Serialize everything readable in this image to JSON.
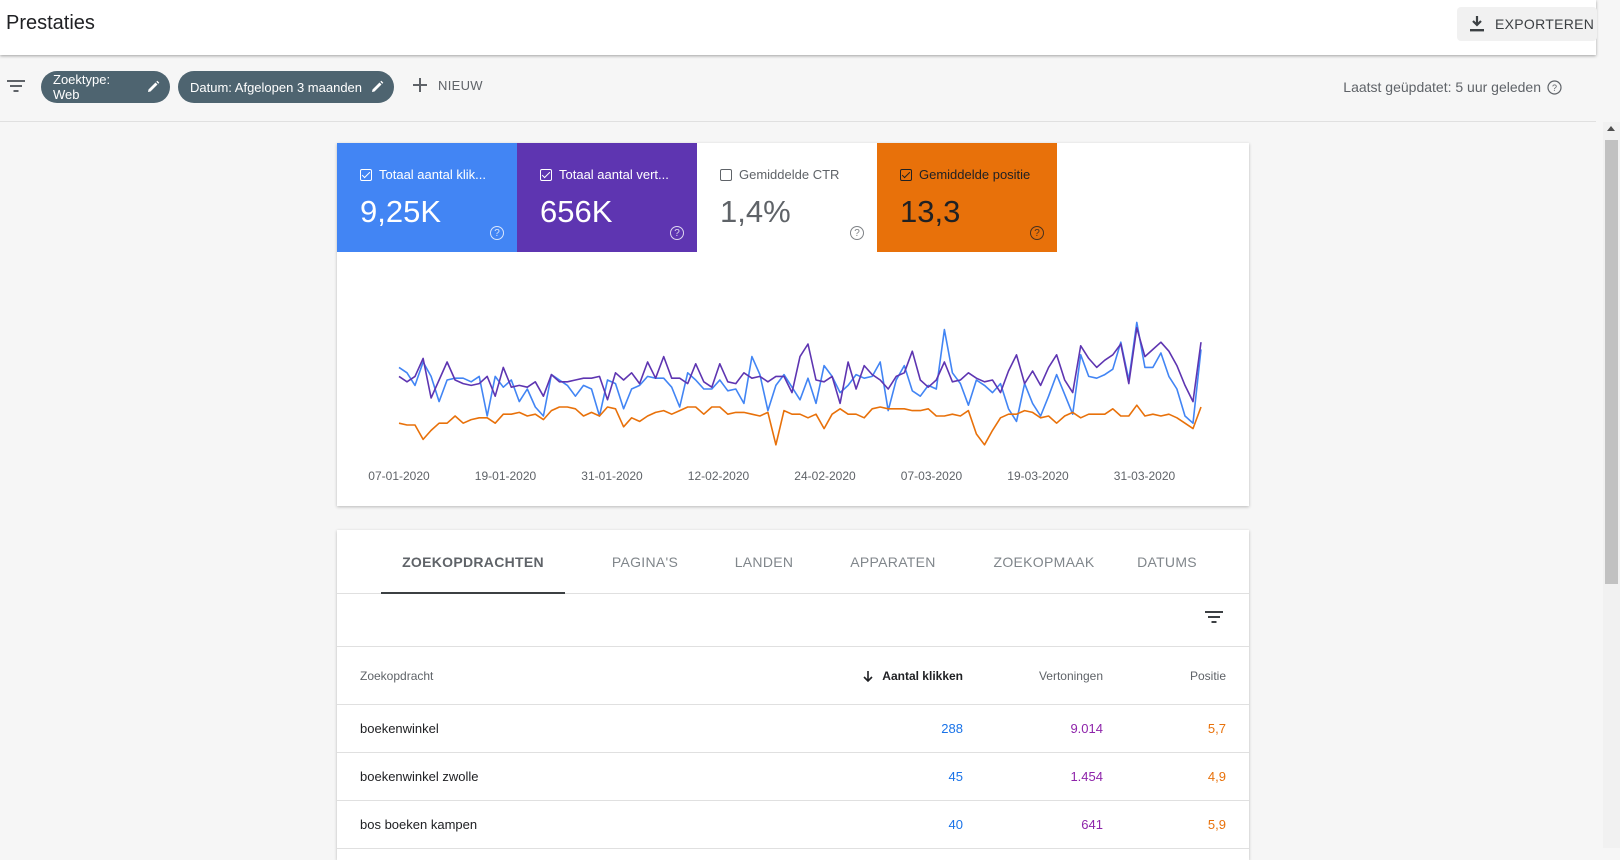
{
  "header": {
    "title": "Prestaties",
    "export_label": "EXPORTEREN"
  },
  "filters": {
    "chips": [
      "Zoektype: Web",
      "Datum: Afgelopen 3 maanden"
    ],
    "new_label": "NIEUW",
    "updated_text": "Laatst geüpdatet: 5 uur geleden"
  },
  "metrics": [
    {
      "label": "Totaal aantal klik...",
      "value": "9,25K",
      "checked": true,
      "bg": "#4285f4",
      "fg": "#ffffff"
    },
    {
      "label": "Totaal aantal vert...",
      "value": "656K",
      "checked": true,
      "bg": "#5e35b1",
      "fg": "#ffffff"
    },
    {
      "label": "Gemiddelde CTR",
      "value": "1,4%",
      "checked": false,
      "bg": "#ffffff",
      "fg": "#5f6368"
    },
    {
      "label": "Gemiddelde positie",
      "value": "13,3",
      "checked": true,
      "bg": "#e8710a",
      "fg": "#202124"
    }
  ],
  "chart_data": {
    "type": "line",
    "x_tick_labels": [
      "07-01-2020",
      "19-01-2020",
      "31-01-2020",
      "12-02-2020",
      "24-02-2020",
      "07-03-2020",
      "19-03-2020",
      "31-03-2020"
    ],
    "series": [
      {
        "name": "Totaal aantal klikken",
        "color": "#4285f4",
        "values": [
          0.47,
          0.44,
          0.37,
          0.5,
          0.42,
          0.28,
          0.4,
          0.41,
          0.41,
          0.39,
          0.42,
          0.2,
          0.42,
          0.36,
          0.4,
          0.28,
          0.35,
          0.25,
          0.2,
          0.43,
          0.4,
          0.37,
          0.31,
          0.37,
          0.35,
          0.2,
          0.4,
          0.38,
          0.24,
          0.35,
          0.37,
          0.42,
          0.41,
          0.41,
          0.36,
          0.25,
          0.44,
          0.4,
          0.35,
          0.35,
          0.4,
          0.34,
          0.35,
          0.27,
          0.53,
          0.43,
          0.23,
          0.37,
          0.43,
          0.36,
          0.29,
          0.41,
          0.27,
          0.48,
          0.42,
          0.33,
          0.37,
          0.43,
          0.41,
          0.42,
          0.5,
          0.23,
          0.4,
          0.48,
          0.34,
          0.31,
          0.37,
          0.35,
          0.68,
          0.44,
          0.38,
          0.26,
          0.4,
          0.37,
          0.33,
          0.38,
          0.24,
          0.17,
          0.38,
          0.27,
          0.2,
          0.31,
          0.43,
          0.32,
          0.21,
          0.54,
          0.42,
          0.41,
          0.43,
          0.46,
          0.61,
          0.4,
          0.72,
          0.47,
          0.47,
          0.55,
          0.42,
          0.35,
          0.2,
          0.16,
          0.57
        ]
      },
      {
        "name": "Totaal aantal vertoningen",
        "color": "#5e35b1",
        "values": [
          0.42,
          0.39,
          0.42,
          0.52,
          0.3,
          0.4,
          0.5,
          0.4,
          0.38,
          0.37,
          0.38,
          0.42,
          0.31,
          0.47,
          0.36,
          0.37,
          0.36,
          0.39,
          0.31,
          0.43,
          0.39,
          0.39,
          0.4,
          0.41,
          0.41,
          0.42,
          0.29,
          0.44,
          0.4,
          0.44,
          0.38,
          0.5,
          0.41,
          0.53,
          0.41,
          0.41,
          0.38,
          0.49,
          0.39,
          0.36,
          0.49,
          0.39,
          0.38,
          0.44,
          0.41,
          0.42,
          0.39,
          0.42,
          0.42,
          0.33,
          0.53,
          0.6,
          0.4,
          0.39,
          0.42,
          0.27,
          0.5,
          0.35,
          0.48,
          0.43,
          0.4,
          0.35,
          0.42,
          0.44,
          0.56,
          0.4,
          0.36,
          0.4,
          0.5,
          0.39,
          0.4,
          0.44,
          0.41,
          0.39,
          0.4,
          0.33,
          0.45,
          0.54,
          0.38,
          0.45,
          0.37,
          0.47,
          0.54,
          0.4,
          0.33,
          0.59,
          0.52,
          0.47,
          0.51,
          0.54,
          0.6,
          0.38,
          0.69,
          0.53,
          0.57,
          0.61,
          0.56,
          0.48,
          0.37,
          0.28,
          0.61
        ]
      },
      {
        "name": "Gemiddelde positie",
        "color": "#e8710a",
        "values": [
          0.16,
          0.15,
          0.15,
          0.07,
          0.12,
          0.16,
          0.16,
          0.2,
          0.16,
          0.18,
          0.19,
          0.19,
          0.16,
          0.21,
          0.21,
          0.22,
          0.2,
          0.21,
          0.18,
          0.23,
          0.25,
          0.25,
          0.24,
          0.2,
          0.22,
          0.2,
          0.25,
          0.24,
          0.14,
          0.19,
          0.17,
          0.2,
          0.22,
          0.23,
          0.21,
          0.23,
          0.25,
          0.25,
          0.21,
          0.25,
          0.25,
          0.21,
          0.22,
          0.22,
          0.21,
          0.2,
          0.22,
          0.04,
          0.23,
          0.21,
          0.21,
          0.19,
          0.21,
          0.13,
          0.21,
          0.24,
          0.21,
          0.21,
          0.19,
          0.24,
          0.25,
          0.24,
          0.24,
          0.24,
          0.23,
          0.23,
          0.24,
          0.2,
          0.2,
          0.21,
          0.2,
          0.23,
          0.1,
          0.04,
          0.12,
          0.19,
          0.21,
          0.21,
          0.23,
          0.22,
          0.19,
          0.2,
          0.16,
          0.2,
          0.22,
          0.19,
          0.21,
          0.21,
          0.21,
          0.24,
          0.2,
          0.2,
          0.26,
          0.2,
          0.21,
          0.2,
          0.21,
          0.19,
          0.16,
          0.13,
          0.25
        ]
      }
    ]
  },
  "tabs": [
    "ZOEKOPDRACHTEN",
    "PAGINA'S",
    "LANDEN",
    "APPARATEN",
    "ZOEKOPMAAK",
    "DATUMS"
  ],
  "table": {
    "columns": [
      "Zoekopdracht",
      "Aantal klikken",
      "Vertoningen",
      "Positie"
    ],
    "rows": [
      [
        "boekenwinkel",
        "288",
        "9.014",
        "5,7"
      ],
      [
        "boekenwinkel zwolle",
        "45",
        "1.454",
        "4,9"
      ],
      [
        "bos boeken kampen",
        "40",
        "641",
        "5,9"
      ]
    ],
    "colors": {
      "clicks": "#1a73e8",
      "impressions": "#8e24aa",
      "position": "#e8710a"
    }
  }
}
